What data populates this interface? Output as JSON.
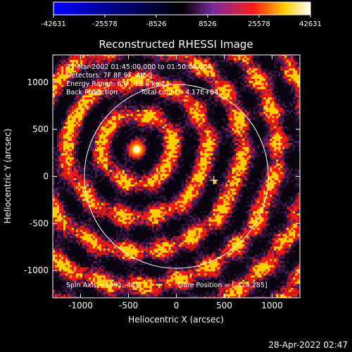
{
  "colorbar": {
    "ticks": [
      "-42631",
      "-25578",
      "-8526",
      "8526",
      "25578",
      "42631"
    ],
    "stops": [
      "#0000ff",
      "#000000",
      "#7a2aa0",
      "#ff1a1a",
      "#ffd000",
      "#ffffff"
    ]
  },
  "chart_data": {
    "type": "heatmap",
    "title": "Reconstructed RHESSI Image",
    "xlabel": "Heliocentric X (arcsec)",
    "ylabel": "Heliocentric Y (arcsec)",
    "xlim": [
      -1290,
      1290
    ],
    "ylim": [
      -1290,
      1290
    ],
    "xticks": [
      -1000,
      -500,
      0,
      500,
      1000
    ],
    "yticks": [
      1000,
      500,
      0,
      -500,
      -1000
    ],
    "value_range": [
      -42631,
      42631
    ],
    "total_counts": "4.17E+04",
    "solar_limb_radius_arcsec": 960,
    "flare_position": [
      -414,
      285
    ],
    "spin_axis": [
      391,
      -42
    ],
    "annotations": {
      "time_range": "31-Mar-2002 01:45:00.000 to 01:50:00.000",
      "detectors": "Detectors: 7F 8F 9F, Att 0",
      "energy": "Energy Range: 6.0 - 12.0 keV",
      "method": "Back Projection",
      "counts": "Total counts: 4.17E+04",
      "spin": "Spin Axis = [391,-42]",
      "flare": "Flare Position = [-414,285]"
    }
  },
  "footer": {
    "timestamp": "28-Apr-2022 02:47"
  }
}
